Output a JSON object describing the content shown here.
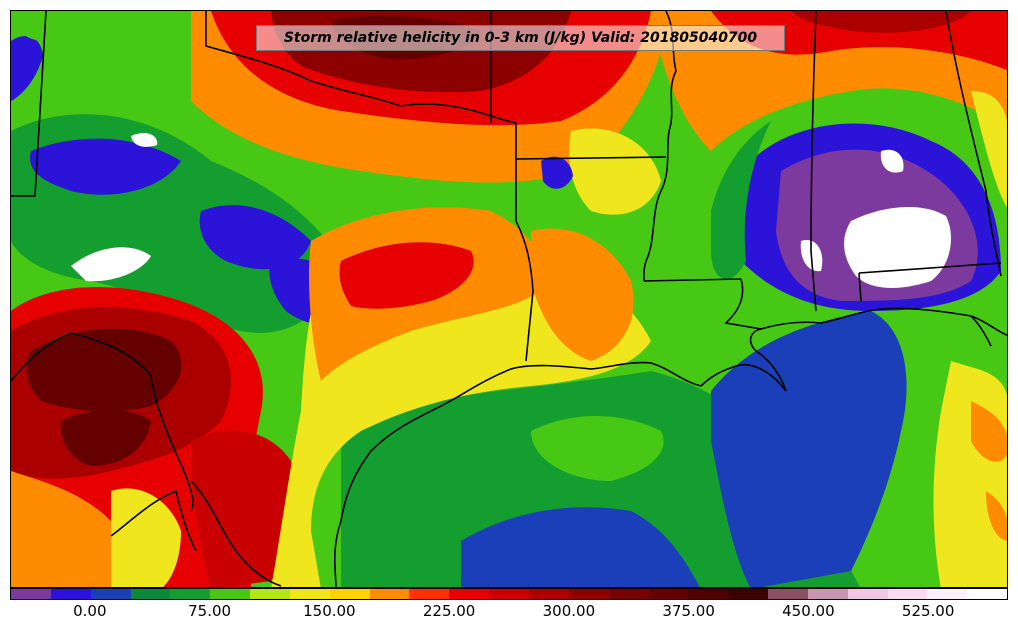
{
  "title": "Storm relative helicity in 0-3 km (J/kg) Valid: 201805040700",
  "colorbar": {
    "colors": [
      "#7d3a9e",
      "#2b14d8",
      "#1b3fb8",
      "#0a8a3a",
      "#159e30",
      "#46c814",
      "#b4e61e",
      "#f0e61e",
      "#ffd200",
      "#ff8c00",
      "#ff3200",
      "#e60000",
      "#c80000",
      "#aa0000",
      "#8c0000",
      "#780000",
      "#640000",
      "#500000",
      "#3c0000",
      "#8c5064",
      "#c896b4",
      "#f0c8e6",
      "#fadcf0",
      "#fff0fa",
      "#ffffff"
    ],
    "tick_labels": [
      "0.00",
      "75.00",
      "150.00",
      "225.00",
      "300.00",
      "375.00",
      "450.00",
      "525.00"
    ],
    "tick_values": [
      0,
      75,
      150,
      225,
      300,
      375,
      450,
      525
    ],
    "range": [
      -50,
      575
    ]
  },
  "map": {
    "field": "storm_relative_helicity_0_3km",
    "units": "J/kg",
    "valid_time": "201805040700"
  }
}
